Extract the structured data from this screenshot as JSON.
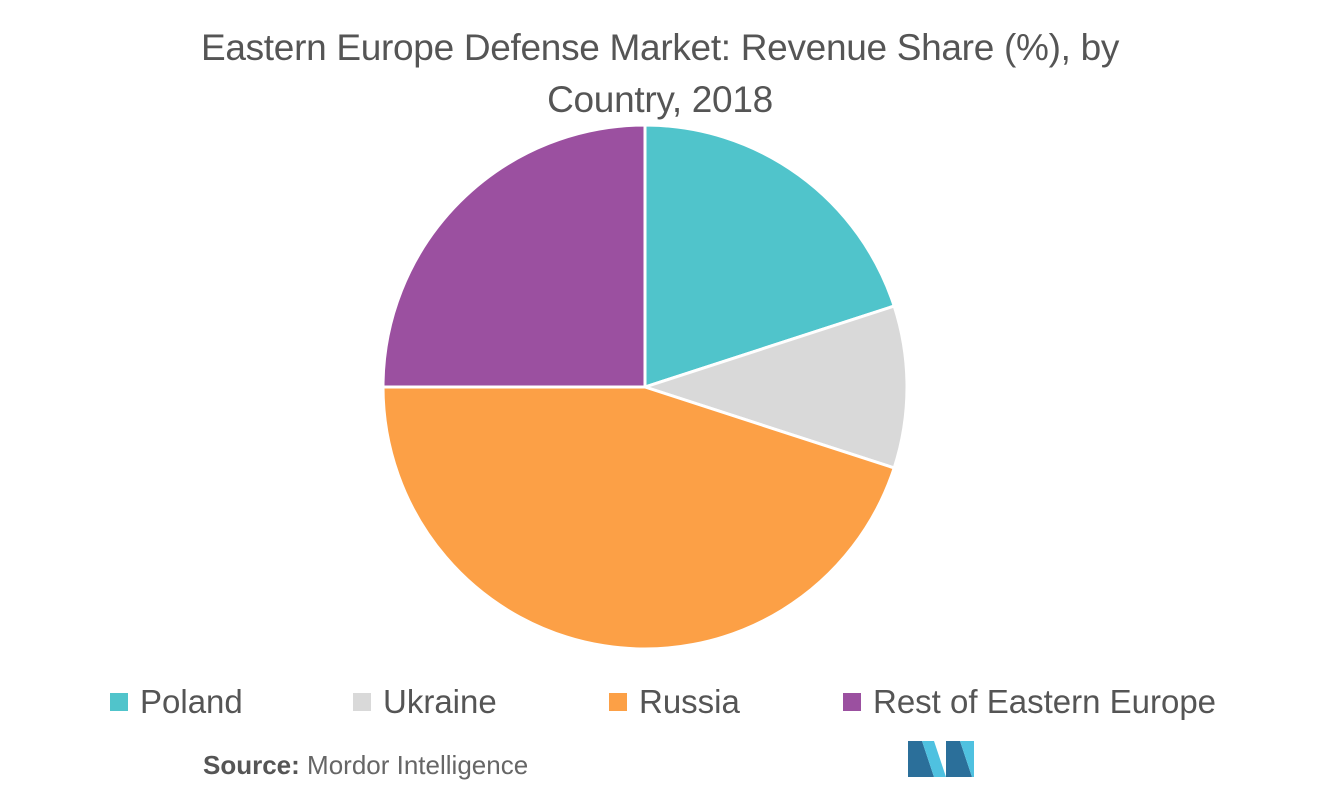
{
  "chart_data": {
    "type": "pie",
    "title": "Eastern Europe Defense Market: Revenue Share (%), by Country, 2018",
    "title_lines": [
      "Eastern Europe Defense Market: Revenue Share (%), by",
      "Country, 2018"
    ],
    "categories": [
      "Poland",
      "Ukraine",
      "Russia",
      "Rest of Eastern Europe"
    ],
    "values": [
      20,
      10,
      45,
      25
    ],
    "colors": [
      "#50c4cb",
      "#d9d9d9",
      "#fca046",
      "#9b50a0"
    ],
    "start_angle_deg": 0,
    "direction": "clockwise",
    "legend_position": "bottom"
  },
  "source": {
    "label": "Source:",
    "text": "Mordor Intelligence"
  },
  "logo": {
    "icon": "mordor-intelligence-logo-icon",
    "colors": [
      "#2b6f9a",
      "#4fc1e0"
    ]
  }
}
